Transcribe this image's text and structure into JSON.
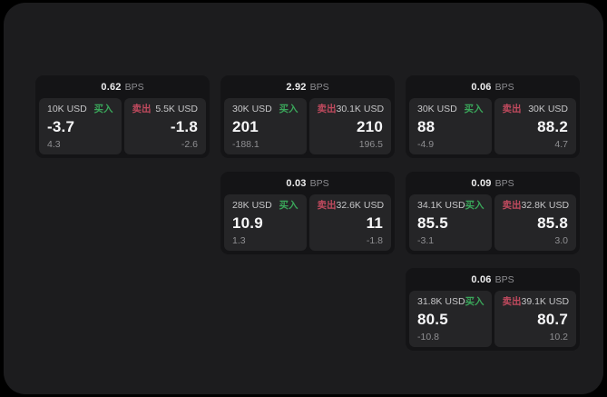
{
  "labels": {
    "buy": "买入",
    "sell": "卖出",
    "bps_unit": "BPS"
  },
  "colors": {
    "buy_green": "#3aa65a",
    "sell_red": "#c04a5e",
    "panel_bg": "#1c1c1e",
    "card_bg": "#141416",
    "tile_bg": "#252527"
  },
  "cards": [
    {
      "row": 0,
      "col": 0,
      "bps": "0.62",
      "buy": {
        "size": "10K USD",
        "price": "-3.7",
        "delta": "4.3"
      },
      "sell": {
        "size": "5.5K USD",
        "price": "-1.8",
        "delta": "-2.6"
      }
    },
    {
      "row": 0,
      "col": 1,
      "bps": "2.92",
      "buy": {
        "size": "30K USD",
        "price": "201",
        "delta": "-188.1"
      },
      "sell": {
        "size": "30.1K USD",
        "price": "210",
        "delta": "196.5"
      }
    },
    {
      "row": 0,
      "col": 2,
      "bps": "0.06",
      "buy": {
        "size": "30K USD",
        "price": "88",
        "delta": "-4.9"
      },
      "sell": {
        "size": "30K USD",
        "price": "88.2",
        "delta": "4.7"
      }
    },
    {
      "row": 1,
      "col": 1,
      "bps": "0.03",
      "buy": {
        "size": "28K USD",
        "price": "10.9",
        "delta": "1.3"
      },
      "sell": {
        "size": "32.6K USD",
        "price": "11",
        "delta": "-1.8"
      }
    },
    {
      "row": 1,
      "col": 2,
      "bps": "0.09",
      "buy": {
        "size": "34.1K USD",
        "price": "85.5",
        "delta": "-3.1"
      },
      "sell": {
        "size": "32.8K USD",
        "price": "85.8",
        "delta": "3.0"
      }
    },
    {
      "row": 2,
      "col": 2,
      "bps": "0.06",
      "buy": {
        "size": "31.8K USD",
        "price": "80.5",
        "delta": "-10.8"
      },
      "sell": {
        "size": "39.1K USD",
        "price": "80.7",
        "delta": "10.2"
      }
    }
  ]
}
